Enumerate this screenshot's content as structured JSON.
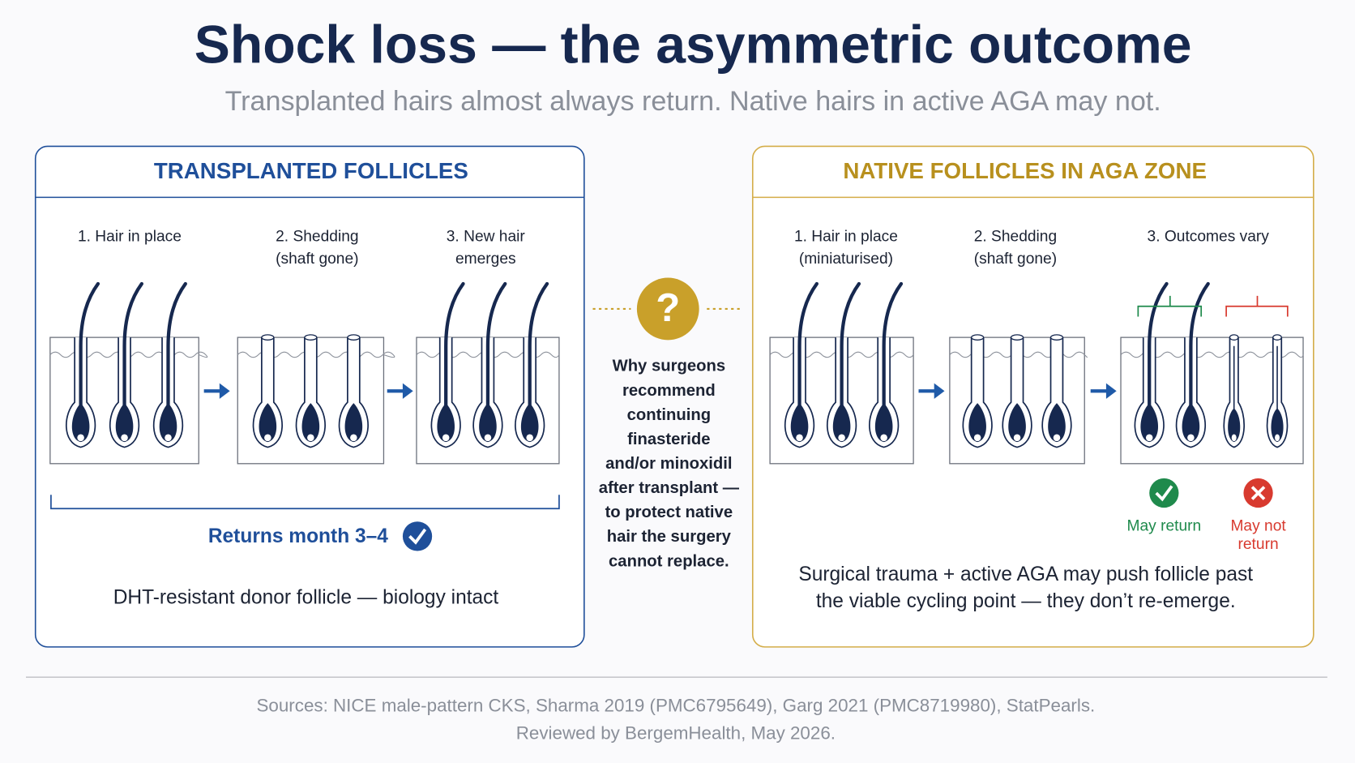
{
  "header": {
    "title": "Shock loss — the asymmetric outcome",
    "subtitle": "Transplanted hairs almost always return. Native hairs in active AGA may not."
  },
  "left_panel": {
    "title": "TRANSPLANTED FOLLICLES",
    "stages": [
      [
        "1. Hair in place"
      ],
      [
        "2. Shedding",
        "(shaft gone)"
      ],
      [
        "3. New hair",
        "emerges"
      ]
    ],
    "result": "Returns month 3–4",
    "note": "DHT-resistant donor follicle — biology intact"
  },
  "center": {
    "icon": "?",
    "lines": [
      "Why surgeons",
      "recommend",
      "continuing",
      "finasteride",
      "and/or minoxidil",
      "after transplant —",
      "to protect native",
      "hair the surgery",
      "cannot replace."
    ]
  },
  "right_panel": {
    "title": "NATIVE FOLLICLES IN AGA ZONE",
    "stages": [
      [
        "1. Hair in place",
        "(miniaturised)"
      ],
      [
        "2. Shedding",
        "(shaft gone)"
      ],
      [
        "3. Outcomes vary"
      ]
    ],
    "outcomes": [
      [
        "May return"
      ],
      [
        "May not",
        "return"
      ]
    ],
    "note": [
      "Surgical trauma + active AGA may push follicle past",
      "the viable cycling point — they don’t re-emerge."
    ]
  },
  "footer": [
    "Sources: NICE male-pattern CKS, Sharma 2019 (PMC6795649), Garg 2021 (PMC8719980), StatPearls.",
    "Reviewed by BergemHealth, May 2026."
  ]
}
